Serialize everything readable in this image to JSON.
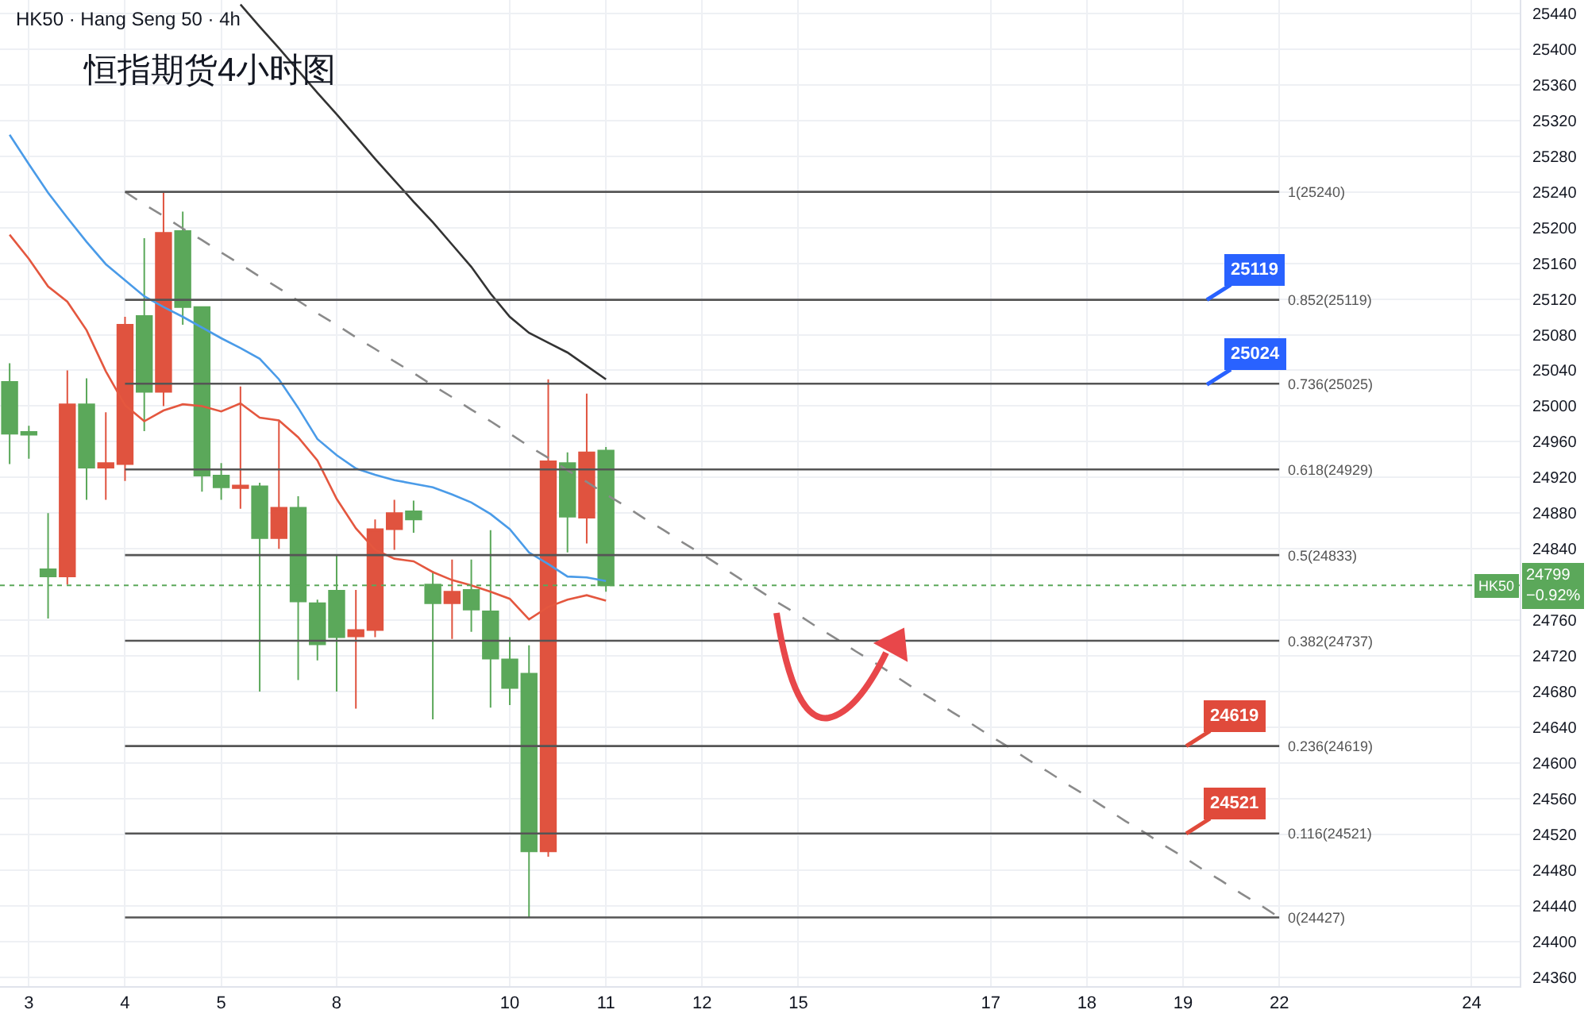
{
  "chart_data": {
    "type": "candlestick",
    "title": "恒指期货4小时图",
    "subtitle": "HK50 · Hang Seng 50 · 4h",
    "categories": [
      null,
      "3",
      null,
      null,
      null,
      null,
      "4",
      null,
      null,
      null,
      null,
      "5",
      null,
      null,
      null,
      null,
      null,
      "8",
      null,
      null,
      null,
      null,
      null,
      null,
      null,
      null,
      "10",
      null,
      null,
      null,
      null,
      "11",
      null,
      null,
      null,
      null,
      "12",
      null,
      null,
      null,
      null,
      "15",
      null,
      null,
      null,
      null,
      null,
      null,
      null,
      null,
      null,
      "17",
      null,
      null,
      null,
      null,
      "18",
      null,
      null,
      null,
      null,
      "19",
      null,
      null,
      null,
      null,
      "22",
      null,
      null,
      null,
      null,
      null,
      null,
      null,
      null,
      null,
      "24",
      null,
      null
    ],
    "ohlc": [
      [
        25027,
        25048,
        24935,
        24969
      ],
      [
        24971,
        24978,
        24941,
        24968
      ],
      [
        24817,
        24880,
        24762,
        24809
      ],
      [
        24809,
        25040,
        24800,
        25002
      ],
      [
        25002,
        25031,
        24895,
        24931
      ],
      [
        24931,
        24993,
        24895,
        24936
      ],
      [
        24935,
        25100,
        24916,
        25091
      ],
      [
        25101,
        25188,
        24972,
        25016
      ],
      [
        25016,
        25240,
        25000,
        25194
      ],
      [
        25196,
        25218,
        25091,
        25111
      ],
      [
        25111,
        25111,
        24904,
        24922
      ],
      [
        24922,
        24936,
        24895,
        24909
      ],
      [
        24908,
        25022,
        24885,
        24911
      ],
      [
        24910,
        24914,
        24680,
        24852
      ],
      [
        24852,
        24983,
        24840,
        24886
      ],
      [
        24886,
        24899,
        24693,
        24781
      ],
      [
        24779,
        24783,
        24715,
        24733
      ],
      [
        24793,
        24834,
        24680,
        24741
      ],
      [
        24742,
        24794,
        24661,
        24749
      ],
      [
        24749,
        24873,
        24741,
        24862
      ],
      [
        24862,
        24895,
        24839,
        24880
      ],
      [
        24882,
        24894,
        24858,
        24873
      ],
      [
        24800,
        24815,
        24649,
        24779
      ],
      [
        24779,
        24828,
        24739,
        24792
      ],
      [
        24794,
        24828,
        24747,
        24772
      ],
      [
        24770,
        24861,
        24662,
        24717
      ],
      [
        24716,
        24741,
        24665,
        24684
      ],
      [
        24700,
        24732,
        24427,
        24501
      ],
      [
        24501,
        25030,
        24495,
        24938
      ],
      [
        24936,
        24948,
        24836,
        24876
      ],
      [
        24875,
        25014,
        24846,
        24948
      ],
      [
        24950,
        24954,
        24792,
        24799
      ],
      null,
      null,
      null,
      null,
      null,
      null,
      null,
      null,
      null,
      null,
      null,
      null,
      null,
      null,
      null,
      null,
      null,
      null,
      null,
      null,
      null,
      null,
      null,
      null,
      null,
      null,
      null,
      null,
      null,
      null,
      null,
      null,
      null,
      null,
      null,
      null,
      null,
      null,
      null,
      null,
      null,
      null,
      null,
      null,
      null,
      null,
      null
    ],
    "colors": [
      "#5ba85a",
      "#5ba85a",
      "#5ba85a",
      "#e0533f",
      "#5ba85a",
      "#e0533f",
      "#e0533f",
      "#5ba85a",
      "#e0533f",
      "#5ba85a",
      "#5ba85a",
      "#5ba85a",
      "#e0533f",
      "#5ba85a",
      "#e0533f",
      "#5ba85a",
      "#5ba85a",
      "#5ba85a",
      "#e0533f",
      "#e0533f",
      "#e0533f",
      "#5ba85a",
      "#5ba85a",
      "#e0533f",
      "#5ba85a",
      "#5ba85a",
      "#5ba85a",
      "#5ba85a",
      "#e0533f",
      "#5ba85a",
      "#e0533f",
      "#5ba85a",
      null,
      null,
      null,
      null,
      null,
      null,
      null,
      null,
      null,
      null,
      null,
      null,
      null,
      null,
      null,
      null,
      null,
      null,
      null,
      null,
      null,
      null,
      null,
      null,
      null,
      null,
      null,
      null,
      null,
      null,
      null,
      null,
      null,
      null,
      null,
      null,
      null,
      null,
      null,
      null,
      null,
      null,
      null,
      null,
      null,
      null,
      null
    ],
    "series": [
      {
        "type": "line",
        "color": "#4a9be8",
        "values": [
          25304,
          25271,
          25239,
          25211,
          25184,
          25159,
          25141,
          25123,
          25111,
          25100,
          25088,
          25076,
          25065,
          25053,
          25030,
          24998,
          24963,
          24945,
          24930,
          24923,
          24917,
          24913,
          24909,
          24901,
          24892,
          24879,
          24862,
          24836,
          24823,
          24809,
          24808,
          24804,
          null,
          null,
          null,
          null,
          null,
          null,
          null,
          null,
          null,
          null,
          null,
          null,
          null,
          null,
          null,
          null,
          null,
          null,
          null,
          null,
          null,
          null,
          null,
          null,
          null,
          null,
          null,
          null,
          null,
          null,
          null,
          null,
          null,
          null,
          null,
          null,
          null,
          null,
          null,
          null,
          null,
          null,
          null,
          null,
          null,
          null,
          null
        ]
      },
      {
        "type": "line",
        "color": "#e4573f",
        "values": [
          25192,
          25165,
          25134,
          25117,
          25085,
          25039,
          25001,
          24983,
          24995,
          25002,
          25000,
          24994,
          25003,
          24987,
          24984,
          24965,
          24939,
          24896,
          24863,
          24839,
          24829,
          24826,
          24814,
          24805,
          24799,
          24792,
          24784,
          24761,
          24775,
          24783,
          24788,
          24782,
          null,
          null,
          null,
          null,
          null,
          null,
          null,
          null,
          null,
          null,
          null,
          null,
          null,
          null,
          null,
          null,
          null,
          null,
          null,
          null,
          null,
          null,
          null,
          null,
          null,
          null,
          null,
          null,
          null,
          null,
          null,
          null,
          null,
          null,
          null,
          null,
          null,
          null,
          null,
          null,
          null,
          null,
          null,
          null,
          null,
          null,
          null
        ]
      },
      {
        "type": "line",
        "color": "#333333",
        "values": [
          null,
          null,
          null,
          null,
          null,
          null,
          null,
          null,
          null,
          null,
          null,
          null,
          25450,
          25425,
          25401,
          25376,
          25351,
          25327,
          25302,
          25277,
          25253,
          25229,
          25206,
          25181,
          25156,
          25126,
          25100,
          25082,
          25071,
          25060,
          25045,
          25030,
          null,
          null,
          null,
          null,
          null,
          null,
          null,
          null,
          null,
          null,
          null,
          null,
          null,
          null,
          null,
          null,
          null,
          null,
          null,
          null,
          null,
          null,
          null,
          null,
          null,
          null,
          null,
          null,
          null,
          null,
          null,
          null,
          null,
          null,
          null,
          null,
          null,
          null,
          null,
          null,
          null,
          null,
          null,
          null,
          null,
          null,
          null
        ]
      },
      {
        "type": "line",
        "color": "#8a8a8a",
        "line_style": "dashed",
        "values": [
          null,
          null,
          null,
          null,
          null,
          null,
          25240,
          25226,
          25213,
          25199,
          25186,
          25172,
          25159,
          25145,
          25132,
          25118,
          25104,
          25091,
          25077,
          25064,
          25050,
          25037,
          25023,
          25010,
          24996,
          24983,
          24969,
          24955,
          24942,
          24928,
          24915,
          24901,
          24888,
          24874,
          24861,
          24847,
          24834,
          24820,
          24806,
          24793,
          24779,
          24766,
          24752,
          24739,
          24725,
          24712,
          24698,
          24684,
          24671,
          24657,
          24644,
          24630,
          24617,
          24603,
          24590,
          24576,
          24563,
          24549,
          24535,
          24522,
          24508,
          24495,
          24481,
          24468,
          24454,
          24441,
          24427,
          null,
          null,
          null,
          null,
          null,
          null,
          null,
          null,
          null,
          null,
          null,
          null
        ]
      },
      {
        "type": "line",
        "name": "1(25240)",
        "color": "#555555",
        "values": [
          null,
          null,
          null,
          null,
          null,
          null,
          25240,
          25240,
          25240,
          25240,
          25240,
          25240,
          25240,
          25240,
          25240,
          25240,
          25240,
          25240,
          25240,
          25240,
          25240,
          25240,
          25240,
          25240,
          25240,
          25240,
          25240,
          25240,
          25240,
          25240,
          25240,
          25240,
          25240,
          25240,
          25240,
          25240,
          25240,
          25240,
          25240,
          25240,
          25240,
          25240,
          25240,
          25240,
          25240,
          25240,
          25240,
          25240,
          25240,
          25240,
          25240,
          25240,
          25240,
          25240,
          25240,
          25240,
          25240,
          25240,
          25240,
          25240,
          25240,
          25240,
          25240,
          25240,
          25240,
          25240,
          25240,
          null,
          null,
          null,
          null,
          null,
          null,
          null,
          null,
          null,
          null,
          null,
          null
        ]
      },
      {
        "type": "line",
        "name": "0.852(25119)",
        "color": "#555555",
        "values": [
          null,
          null,
          null,
          null,
          null,
          null,
          25119,
          25119,
          25119,
          25119,
          25119,
          25119,
          25119,
          25119,
          25119,
          25119,
          25119,
          25119,
          25119,
          25119,
          25119,
          25119,
          25119,
          25119,
          25119,
          25119,
          25119,
          25119,
          25119,
          25119,
          25119,
          25119,
          25119,
          25119,
          25119,
          25119,
          25119,
          25119,
          25119,
          25119,
          25119,
          25119,
          25119,
          25119,
          25119,
          25119,
          25119,
          25119,
          25119,
          25119,
          25119,
          25119,
          25119,
          25119,
          25119,
          25119,
          25119,
          25119,
          25119,
          25119,
          25119,
          25119,
          25119,
          25119,
          25119,
          25119,
          25119,
          null,
          null,
          null,
          null,
          null,
          null,
          null,
          null,
          null,
          null,
          null,
          null
        ]
      },
      {
        "type": "line",
        "name": "0.736(25025)",
        "color": "#555555",
        "values": [
          null,
          null,
          null,
          null,
          null,
          null,
          25025,
          25025,
          25025,
          25025,
          25025,
          25025,
          25025,
          25025,
          25025,
          25025,
          25025,
          25025,
          25025,
          25025,
          25025,
          25025,
          25025,
          25025,
          25025,
          25025,
          25025,
          25025,
          25025,
          25025,
          25025,
          25025,
          25025,
          25025,
          25025,
          25025,
          25025,
          25025,
          25025,
          25025,
          25025,
          25025,
          25025,
          25025,
          25025,
          25025,
          25025,
          25025,
          25025,
          25025,
          25025,
          25025,
          25025,
          25025,
          25025,
          25025,
          25025,
          25025,
          25025,
          25025,
          25025,
          25025,
          25025,
          25025,
          25025,
          25025,
          25025,
          null,
          null,
          null,
          null,
          null,
          null,
          null,
          null,
          null,
          null,
          null,
          null
        ]
      },
      {
        "type": "line",
        "name": "0.618(24929)",
        "color": "#555555",
        "values": [
          null,
          null,
          null,
          null,
          null,
          null,
          24929,
          24929,
          24929,
          24929,
          24929,
          24929,
          24929,
          24929,
          24929,
          24929,
          24929,
          24929,
          24929,
          24929,
          24929,
          24929,
          24929,
          24929,
          24929,
          24929,
          24929,
          24929,
          24929,
          24929,
          24929,
          24929,
          24929,
          24929,
          24929,
          24929,
          24929,
          24929,
          24929,
          24929,
          24929,
          24929,
          24929,
          24929,
          24929,
          24929,
          24929,
          24929,
          24929,
          24929,
          24929,
          24929,
          24929,
          24929,
          24929,
          24929,
          24929,
          24929,
          24929,
          24929,
          24929,
          24929,
          24929,
          24929,
          24929,
          24929,
          24929,
          null,
          null,
          null,
          null,
          null,
          null,
          null,
          null,
          null,
          null,
          null,
          null
        ]
      },
      {
        "type": "line",
        "name": "0.5(24833)",
        "color": "#555555",
        "values": [
          null,
          null,
          null,
          null,
          null,
          null,
          24833,
          24833,
          24833,
          24833,
          24833,
          24833,
          24833,
          24833,
          24833,
          24833,
          24833,
          24833,
          24833,
          24833,
          24833,
          24833,
          24833,
          24833,
          24833,
          24833,
          24833,
          24833,
          24833,
          24833,
          24833,
          24833,
          24833,
          24833,
          24833,
          24833,
          24833,
          24833,
          24833,
          24833,
          24833,
          24833,
          24833,
          24833,
          24833,
          24833,
          24833,
          24833,
          24833,
          24833,
          24833,
          24833,
          24833,
          24833,
          24833,
          24833,
          24833,
          24833,
          24833,
          24833,
          24833,
          24833,
          24833,
          24833,
          24833,
          24833,
          24833,
          null,
          null,
          null,
          null,
          null,
          null,
          null,
          null,
          null,
          null,
          null,
          null
        ]
      },
      {
        "type": "line",
        "name": "0.382(24737)",
        "color": "#555555",
        "values": [
          null,
          null,
          null,
          null,
          null,
          null,
          24737,
          24737,
          24737,
          24737,
          24737,
          24737,
          24737,
          24737,
          24737,
          24737,
          24737,
          24737,
          24737,
          24737,
          24737,
          24737,
          24737,
          24737,
          24737,
          24737,
          24737,
          24737,
          24737,
          24737,
          24737,
          24737,
          24737,
          24737,
          24737,
          24737,
          24737,
          24737,
          24737,
          24737,
          24737,
          24737,
          24737,
          24737,
          24737,
          24737,
          24737,
          24737,
          24737,
          24737,
          24737,
          24737,
          24737,
          24737,
          24737,
          24737,
          24737,
          24737,
          24737,
          24737,
          24737,
          24737,
          24737,
          24737,
          24737,
          24737,
          24737,
          null,
          null,
          null,
          null,
          null,
          null,
          null,
          null,
          null,
          null,
          null,
          null
        ]
      },
      {
        "type": "line",
        "name": "0.236(24619)",
        "color": "#555555",
        "values": [
          null,
          null,
          null,
          null,
          null,
          null,
          24619,
          24619,
          24619,
          24619,
          24619,
          24619,
          24619,
          24619,
          24619,
          24619,
          24619,
          24619,
          24619,
          24619,
          24619,
          24619,
          24619,
          24619,
          24619,
          24619,
          24619,
          24619,
          24619,
          24619,
          24619,
          24619,
          24619,
          24619,
          24619,
          24619,
          24619,
          24619,
          24619,
          24619,
          24619,
          24619,
          24619,
          24619,
          24619,
          24619,
          24619,
          24619,
          24619,
          24619,
          24619,
          24619,
          24619,
          24619,
          24619,
          24619,
          24619,
          24619,
          24619,
          24619,
          24619,
          24619,
          24619,
          24619,
          24619,
          24619,
          24619,
          null,
          null,
          null,
          null,
          null,
          null,
          null,
          null,
          null,
          null,
          null,
          null
        ]
      },
      {
        "type": "line",
        "name": "0.116(24521)",
        "color": "#555555",
        "values": [
          null,
          null,
          null,
          null,
          null,
          null,
          24521,
          24521,
          24521,
          24521,
          24521,
          24521,
          24521,
          24521,
          24521,
          24521,
          24521,
          24521,
          24521,
          24521,
          24521,
          24521,
          24521,
          24521,
          24521,
          24521,
          24521,
          24521,
          24521,
          24521,
          24521,
          24521,
          24521,
          24521,
          24521,
          24521,
          24521,
          24521,
          24521,
          24521,
          24521,
          24521,
          24521,
          24521,
          24521,
          24521,
          24521,
          24521,
          24521,
          24521,
          24521,
          24521,
          24521,
          24521,
          24521,
          24521,
          24521,
          24521,
          24521,
          24521,
          24521,
          24521,
          24521,
          24521,
          24521,
          24521,
          24521,
          null,
          null,
          null,
          null,
          null,
          null,
          null,
          null,
          null,
          null,
          null,
          null
        ]
      },
      {
        "type": "line",
        "name": "0(24427)",
        "color": "#555555",
        "values": [
          null,
          null,
          null,
          null,
          null,
          null,
          24427,
          24427,
          24427,
          24427,
          24427,
          24427,
          24427,
          24427,
          24427,
          24427,
          24427,
          24427,
          24427,
          24427,
          24427,
          24427,
          24427,
          24427,
          24427,
          24427,
          24427,
          24427,
          24427,
          24427,
          24427,
          24427,
          24427,
          24427,
          24427,
          24427,
          24427,
          24427,
          24427,
          24427,
          24427,
          24427,
          24427,
          24427,
          24427,
          24427,
          24427,
          24427,
          24427,
          24427,
          24427,
          24427,
          24427,
          24427,
          24427,
          24427,
          24427,
          24427,
          24427,
          24427,
          24427,
          24427,
          24427,
          24427,
          24427,
          24427,
          24427,
          null,
          null,
          null,
          null,
          null,
          null,
          null,
          null,
          null,
          null,
          null,
          null
        ]
      }
    ],
    "ref_lines": [
      {
        "axis": "y",
        "value": 24799,
        "label": "HK50",
        "color": "#5ba85a",
        "line_style": "dotted"
      }
    ],
    "annotations": [
      {
        "text": "25119",
        "y": 25119
      },
      {
        "text": "25024",
        "y": 25024
      },
      {
        "text": "24619",
        "y": 24619
      },
      {
        "text": "24521",
        "y": 24521
      },
      "24799\n−0.92%"
    ],
    "ylim": [
      24350,
      25455
    ],
    "yticks": [
      24360,
      24400,
      24440,
      24480,
      24520,
      24560,
      24600,
      24640,
      24680,
      24720,
      24760,
      24840,
      24880,
      24920,
      24960,
      25000,
      25040,
      25080,
      25120,
      25160,
      25200,
      25240,
      25280,
      25320,
      25360,
      25400,
      25440
    ],
    "grid": true
  }
}
